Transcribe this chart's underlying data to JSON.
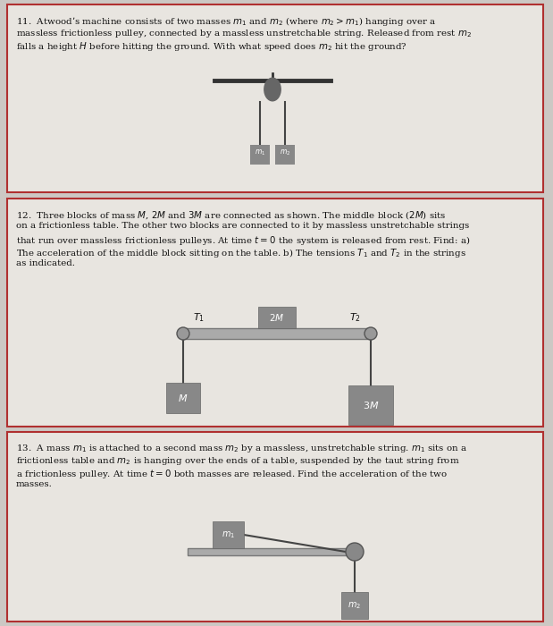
{
  "bg_color": "#ccc8c4",
  "box_bg": "#e8e5e0",
  "box_border": "#b03030",
  "mass_color": "#888888",
  "mass_color_dark": "#777777",
  "pulley_color": "#666666",
  "bar_color": "#333333",
  "string_color": "#444444",
  "text_color": "#111111",
  "table_color": "#aaaaaa",
  "table_edge": "#777777",
  "q11_text_lines": [
    "11.  Atwood’s machine consists of two masses $m_1$ and $m_2$ (where $m_2 > m_1$) hanging over a",
    "massless frictionless pulley, connected by a massless unstretchable string. Released from rest $m_2$",
    "falls a height $H$ before hitting the ground. With what speed does $m_2$ hit the ground?"
  ],
  "q12_text_lines": [
    "12.  Three blocks of mass $M$, $2M$ and $3M$ are connected as shown. The middle block ($2M$) sits",
    "on a frictionless table. The other two blocks are connected to it by massless unstretchable strings",
    "that run over massless frictionless pulleys. At time $t = 0$ the system is released from rest. Find: a)",
    "The acceleration of the middle block sitting on the table. b) The tensions $T_1$ and $T_2$ in the strings",
    "as indicated."
  ],
  "q13_text_lines": [
    "13.  A mass $m_1$ is attached to a second mass $m_2$ by a massless, unstretchable string. $m_1$ sits on a",
    "frictionless table and $m_2$ is hanging over the ends of a table, suspended by the taut string from",
    "a frictionless pulley. At time $t = 0$ both masses are released. Find the acceleration of the two",
    "masses."
  ]
}
